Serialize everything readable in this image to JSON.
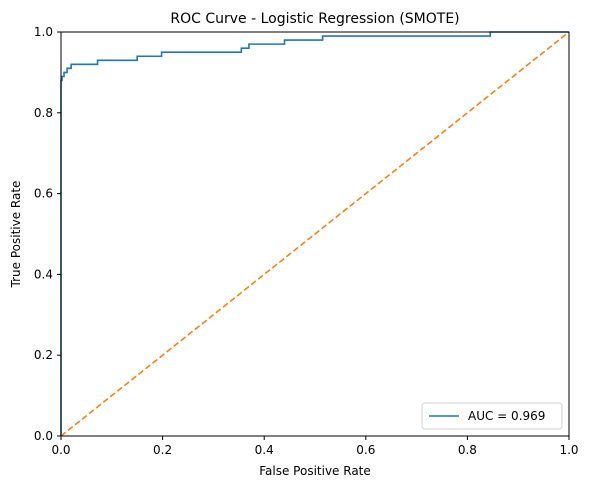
{
  "chart_data": {
    "type": "line",
    "title": "ROC Curve - Logistic Regression (SMOTE)",
    "xlabel": "False Positive Rate",
    "ylabel": "True Positive Rate",
    "xlim": [
      0.0,
      1.0
    ],
    "ylim": [
      0.0,
      1.0
    ],
    "x_ticks": [
      0.0,
      0.2,
      0.4,
      0.6,
      0.8,
      1.0
    ],
    "x_tick_labels": [
      "0.0",
      "0.2",
      "0.4",
      "0.6",
      "0.8",
      "1.0"
    ],
    "y_ticks": [
      0.0,
      0.2,
      0.4,
      0.6,
      0.8,
      1.0
    ],
    "y_tick_labels": [
      "0.0",
      "0.2",
      "0.4",
      "0.6",
      "0.8",
      "1.0"
    ],
    "grid": false,
    "legend_position": "lower-right",
    "series": [
      {
        "name": "AUC = 0.969",
        "color": "#1f77b4",
        "style": "solid",
        "x": [
          0.0,
          0.0,
          0.002,
          0.002,
          0.006,
          0.006,
          0.012,
          0.012,
          0.02,
          0.02,
          0.072,
          0.072,
          0.15,
          0.15,
          0.198,
          0.198,
          0.355,
          0.355,
          0.37,
          0.37,
          0.44,
          0.44,
          0.515,
          0.515,
          0.845,
          0.845,
          1.0
        ],
        "y": [
          0.0,
          0.88,
          0.88,
          0.89,
          0.89,
          0.9,
          0.9,
          0.91,
          0.91,
          0.92,
          0.92,
          0.93,
          0.93,
          0.94,
          0.94,
          0.95,
          0.95,
          0.96,
          0.96,
          0.97,
          0.97,
          0.98,
          0.98,
          0.99,
          0.99,
          1.0,
          1.0
        ]
      },
      {
        "color": "#ff7f0e",
        "style": "dashed",
        "x": [
          0.0,
          1.0
        ],
        "y": [
          0.0,
          1.0
        ]
      }
    ]
  }
}
